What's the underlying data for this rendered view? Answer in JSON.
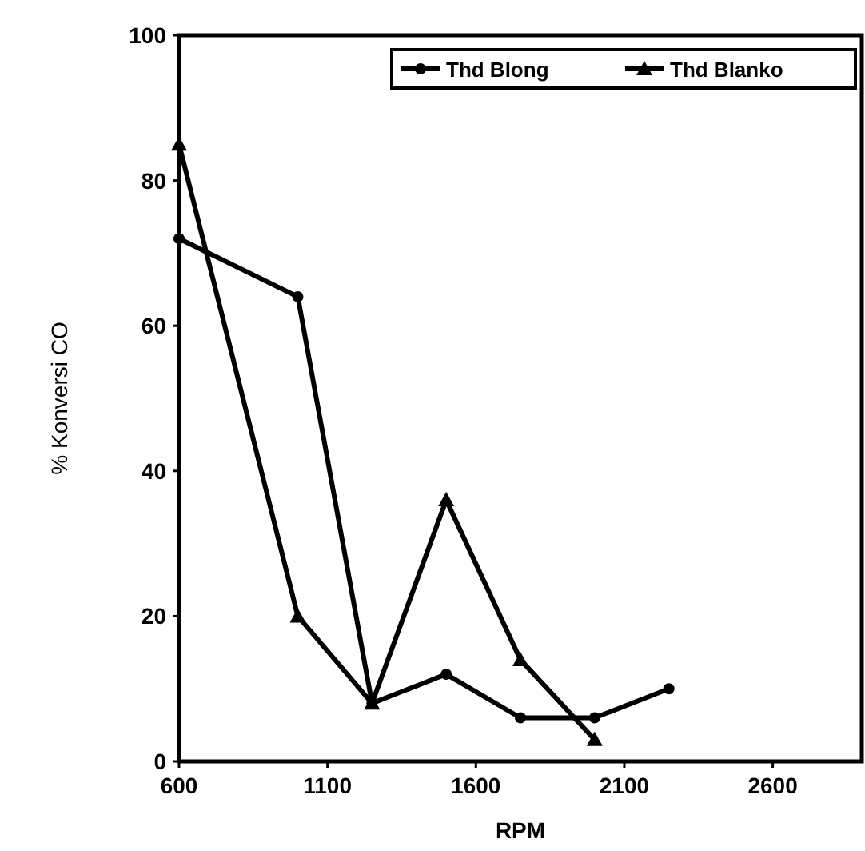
{
  "chart_data": {
    "type": "line",
    "xlabel": "RPM",
    "ylabel": "% Konversi CO",
    "x": [
      600,
      1000,
      1250,
      1500,
      1750,
      2000,
      2250
    ],
    "series": [
      {
        "name": "Thd Blong",
        "color": "#000000",
        "marker": "circle",
        "values": [
          72,
          64,
          8,
          12,
          6,
          6,
          10
        ]
      },
      {
        "name": "Thd Blanko",
        "color": "#000000",
        "marker": "triangle",
        "values": [
          85,
          20,
          8,
          36,
          14,
          3,
          null
        ]
      }
    ],
    "xlim": [
      600,
      2900
    ],
    "xticks": [
      600,
      1100,
      1600,
      2100,
      2600
    ],
    "ylim": [
      0,
      100
    ],
    "yticks": [
      0,
      20,
      40,
      60,
      80,
      100
    ],
    "grid": false,
    "legend": "top right",
    "line_style": "solid"
  }
}
